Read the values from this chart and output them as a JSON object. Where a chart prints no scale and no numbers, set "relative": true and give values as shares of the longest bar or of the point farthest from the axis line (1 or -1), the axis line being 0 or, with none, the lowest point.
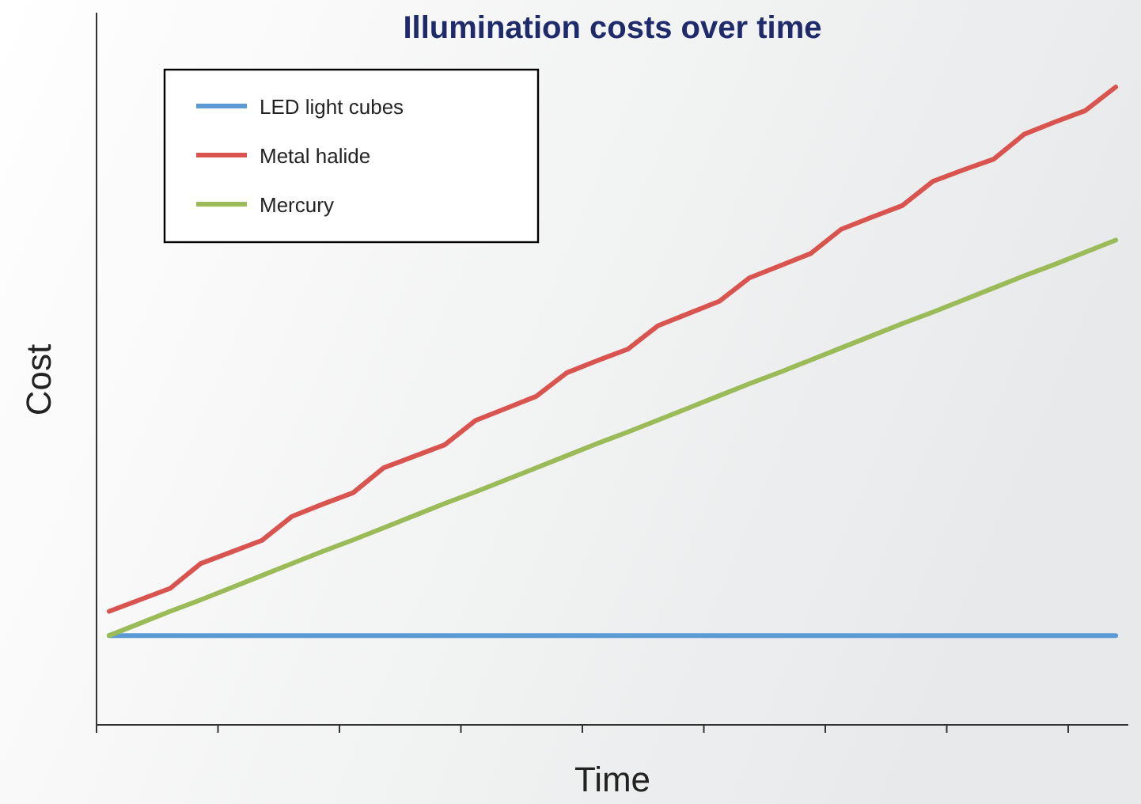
{
  "chart_data": {
    "type": "line",
    "title": "Illumination costs over time",
    "xlabel": "Time",
    "ylabel": "Cost",
    "relative": true,
    "categories": [
      null,
      null,
      null,
      null,
      null,
      null,
      null,
      null,
      null,
      null,
      null,
      null,
      null,
      null,
      null,
      null,
      null,
      null,
      null,
      null,
      null,
      null,
      null,
      null,
      null,
      null,
      null,
      null,
      null,
      null,
      null,
      null,
      null,
      null
    ],
    "legend": "top left",
    "marker": "none",
    "line_style": "solid",
    "series": [
      {
        "name": "LED light cubes",
        "color": "#5b9bd5",
        "values": [
          0.14,
          0.14,
          0.14,
          0.14,
          0.14,
          0.14,
          0.14,
          0.14,
          0.14,
          0.14,
          0.14,
          0.14,
          0.14,
          0.14,
          0.14,
          0.14,
          0.14,
          0.14,
          0.14,
          0.14,
          0.14,
          0.14,
          0.14,
          0.14,
          0.14,
          0.14,
          0.14,
          0.14,
          0.14,
          0.14,
          0.14,
          0.14,
          0.14,
          0.14
        ]
      },
      {
        "name": "Metal halide",
        "color": "#d9534f",
        "values": [
          0.178,
          0.196,
          0.214,
          0.253,
          0.271,
          0.289,
          0.327,
          0.346,
          0.364,
          0.403,
          0.421,
          0.439,
          0.477,
          0.496,
          0.515,
          0.552,
          0.571,
          0.589,
          0.626,
          0.645,
          0.664,
          0.701,
          0.72,
          0.739,
          0.777,
          0.796,
          0.814,
          0.852,
          0.87,
          0.887,
          0.926,
          0.945,
          0.963,
          1
        ]
      },
      {
        "name": "Mercury",
        "color": "#9bbb59",
        "values": [
          0.14,
          0.159,
          0.178,
          0.196,
          0.215,
          0.234,
          0.253,
          0.272,
          0.29,
          0.309,
          0.328,
          0.347,
          0.365,
          0.384,
          0.403,
          0.422,
          0.441,
          0.459,
          0.478,
          0.497,
          0.516,
          0.535,
          0.553,
          0.572,
          0.591,
          0.61,
          0.629,
          0.647,
          0.666,
          0.685,
          0.704,
          0.722,
          0.741,
          0.76
        ]
      }
    ]
  }
}
